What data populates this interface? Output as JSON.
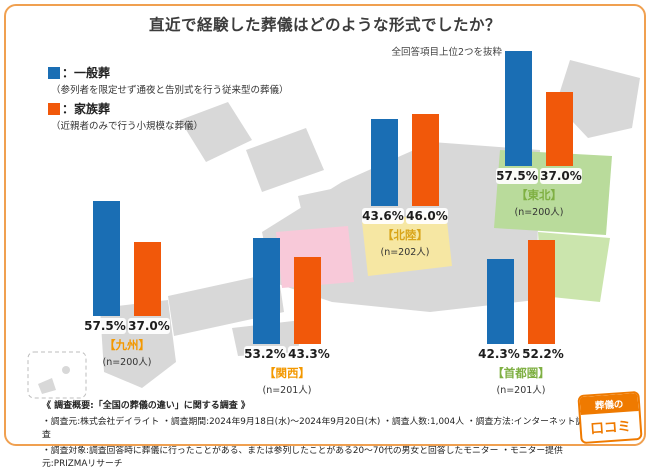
{
  "page": {
    "title": "直近で経験した葬儀はどのような形式でしたか？",
    "subtitle": "全回答項目上位2つを抜粋",
    "border_color": "#f0a050"
  },
  "legend": {
    "items": [
      {
        "label": "：一般葬",
        "desc": "（参列者を限定せず通夜と告別式を行う従来型の葬儀）",
        "color": "#1a6eb4"
      },
      {
        "label": "：家族葬",
        "desc": "（近親者のみで行う小規模な葬儀）",
        "color": "#f1580a"
      }
    ]
  },
  "chart_data": {
    "type": "bar",
    "title": "直近で経験した葬儀はどのような形式でしたか？",
    "subtitle": "全回答項目上位2つを抜粋",
    "unit": "%",
    "ylim": [
      0,
      60
    ],
    "categories": [
      "九州",
      "関西",
      "北陸",
      "東北",
      "首都圏"
    ],
    "series": [
      {
        "name": "一般葬",
        "color": "#1a6eb4",
        "values": [
          57.5,
          53.2,
          43.6,
          57.5,
          42.3
        ]
      },
      {
        "name": "家族葬",
        "color": "#f1580a",
        "values": [
          37.0,
          43.3,
          46.0,
          37.0,
          52.2
        ]
      }
    ],
    "sample_sizes": [
      "(n=200人)",
      "(n=201人)",
      "(n=202人)",
      "(n=200人)",
      "(n=201人)"
    ],
    "regions": [
      {
        "label": "【九州】",
        "n": "(n=200人)",
        "general": 57.5,
        "family": 37.0,
        "general_label": "57.5%",
        "family_label": "37.0%",
        "label_color": "#f39800"
      },
      {
        "label": "【関西】",
        "n": "(n=201人)",
        "general": 53.2,
        "family": 43.3,
        "general_label": "53.2%",
        "family_label": "43.3%",
        "label_color": "#f39800"
      },
      {
        "label": "【北陸】",
        "n": "(n=202人)",
        "general": 43.6,
        "family": 46.0,
        "general_label": "43.6%",
        "family_label": "46.0%",
        "label_color": "#d9a51a"
      },
      {
        "label": "【東北】",
        "n": "(n=200人)",
        "general": 57.5,
        "family": 37.0,
        "general_label": "57.5%",
        "family_label": "37.0%",
        "label_color": "#7fb043"
      },
      {
        "label": "【首都圏】",
        "n": "(n=201人)",
        "general": 42.3,
        "family": 52.2,
        "general_label": "42.3%",
        "family_label": "52.2%",
        "label_color": "#7fb043"
      }
    ]
  },
  "footer": {
    "line1": "《 調査概要:「全国の葬儀の違い」に関する調査 》",
    "line2": "・調査元:株式会社デイライト ・調査期間:2024年9月18日(水)〜2024年9月20日(木) ・調査人数:1,004人 ・調査方法:インターネット調査",
    "line3": "・調査対象:調査回答時に葬儀に行ったことがある、または参列したことがある20〜70代の男女と回答したモニター ・モニター提供元:PRIZMAリサーチ"
  },
  "logo": {
    "top": "葬儀の",
    "bottom": "口コミ",
    "color": "#ef7a00"
  }
}
